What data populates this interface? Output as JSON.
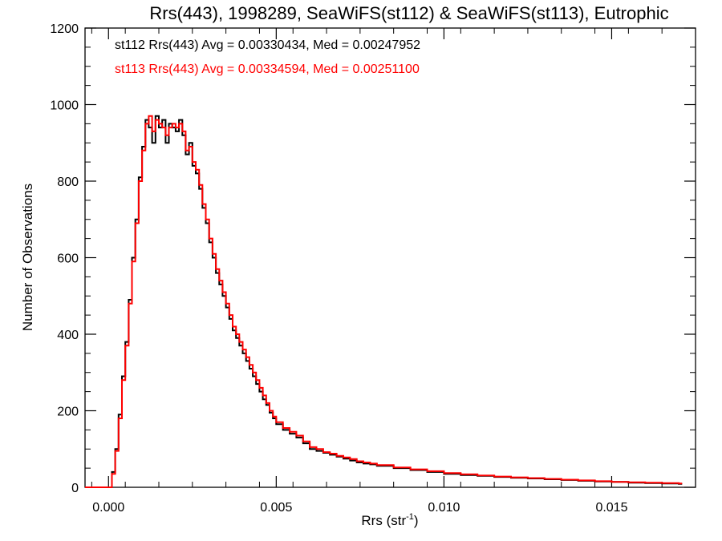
{
  "chart_data": {
    "type": "line",
    "title": "Rrs(443), 1998289, SeaWiFS(st112) & SeaWiFS(st113), Eutrophic",
    "xlabel": "Rrs (str",
    "xlabel_sup": "-1",
    "xlabel_end": ")",
    "ylabel": "Number of Observations",
    "xlim": [
      -0.0007,
      0.0175
    ],
    "ylim": [
      0,
      1200
    ],
    "x_ticks": [
      0.0,
      0.005,
      0.01,
      0.015
    ],
    "x_tick_labels": [
      "0.000",
      "0.005",
      "0.010",
      "0.015"
    ],
    "y_ticks": [
      0,
      200,
      400,
      600,
      800,
      1000,
      1200
    ],
    "y_tick_labels": [
      "0",
      "200",
      "400",
      "600",
      "800",
      "1000",
      "1200"
    ],
    "grid": false,
    "legend_position": "top-left",
    "bin_width": 0.0001,
    "series": [
      {
        "name": "st112",
        "color": "#000000",
        "legend_text": "st112 Rrs(443) Avg = 0.00330434, Med = 0.00247952",
        "x": [
          -0.0007,
          -0.0006,
          -0.0005,
          -0.0004,
          -0.0003,
          -0.0002,
          -0.0001,
          0.0,
          0.0001,
          0.0002,
          0.0003,
          0.0004,
          0.0005,
          0.0006,
          0.0007,
          0.0008,
          0.0009,
          0.001,
          0.0011,
          0.0012,
          0.0013,
          0.0014,
          0.0015,
          0.0016,
          0.0017,
          0.0018,
          0.0019,
          0.002,
          0.0021,
          0.0022,
          0.0023,
          0.0024,
          0.0025,
          0.0026,
          0.0027,
          0.0028,
          0.0029,
          0.003,
          0.0031,
          0.0032,
          0.0033,
          0.0034,
          0.0035,
          0.0036,
          0.0037,
          0.0038,
          0.0039,
          0.004,
          0.0041,
          0.0042,
          0.0043,
          0.0044,
          0.0045,
          0.0046,
          0.0047,
          0.0048,
          0.0049,
          0.005,
          0.0052,
          0.0054,
          0.0056,
          0.0058,
          0.006,
          0.0062,
          0.0064,
          0.0066,
          0.0068,
          0.007,
          0.0072,
          0.0074,
          0.0076,
          0.0078,
          0.008,
          0.0085,
          0.009,
          0.0095,
          0.01,
          0.0105,
          0.011,
          0.0115,
          0.012,
          0.0125,
          0.013,
          0.0135,
          0.014,
          0.0145,
          0.015,
          0.0155,
          0.016,
          0.0165,
          0.017
        ],
        "values": [
          0,
          0,
          0,
          0,
          0,
          0,
          0,
          0,
          40,
          100,
          190,
          290,
          380,
          490,
          600,
          700,
          810,
          890,
          960,
          940,
          900,
          970,
          940,
          960,
          900,
          950,
          940,
          930,
          960,
          920,
          870,
          900,
          840,
          820,
          780,
          730,
          690,
          640,
          600,
          560,
          530,
          500,
          470,
          440,
          410,
          390,
          370,
          350,
          330,
          310,
          290,
          270,
          250,
          230,
          215,
          195,
          180,
          165,
          150,
          140,
          130,
          115,
          100,
          95,
          90,
          85,
          80,
          75,
          70,
          65,
          62,
          60,
          56,
          50,
          45,
          40,
          35,
          32,
          30,
          27,
          25,
          23,
          21,
          19,
          17,
          15,
          14,
          12,
          11,
          10,
          9
        ]
      },
      {
        "name": "st113",
        "color": "#ff0000",
        "legend_text": "st113 Rrs(443) Avg = 0.00334594, Med = 0.00251100",
        "x": [
          -0.0007,
          -0.0006,
          -0.0005,
          -0.0004,
          -0.0003,
          -0.0002,
          -0.0001,
          0.0,
          0.0001,
          0.0002,
          0.0003,
          0.0004,
          0.0005,
          0.0006,
          0.0007,
          0.0008,
          0.0009,
          0.001,
          0.0011,
          0.0012,
          0.0013,
          0.0014,
          0.0015,
          0.0016,
          0.0017,
          0.0018,
          0.0019,
          0.002,
          0.0021,
          0.0022,
          0.0023,
          0.0024,
          0.0025,
          0.0026,
          0.0027,
          0.0028,
          0.0029,
          0.003,
          0.0031,
          0.0032,
          0.0033,
          0.0034,
          0.0035,
          0.0036,
          0.0037,
          0.0038,
          0.0039,
          0.004,
          0.0041,
          0.0042,
          0.0043,
          0.0044,
          0.0045,
          0.0046,
          0.0047,
          0.0048,
          0.0049,
          0.005,
          0.0052,
          0.0054,
          0.0056,
          0.0058,
          0.006,
          0.0062,
          0.0064,
          0.0066,
          0.0068,
          0.007,
          0.0072,
          0.0074,
          0.0076,
          0.0078,
          0.008,
          0.0085,
          0.009,
          0.0095,
          0.01,
          0.0105,
          0.011,
          0.0115,
          0.012,
          0.0125,
          0.013,
          0.0135,
          0.014,
          0.0145,
          0.015,
          0.0155,
          0.016,
          0.0165,
          0.017
        ],
        "values": [
          0,
          0,
          0,
          0,
          0,
          0,
          0,
          0,
          35,
          95,
          180,
          280,
          370,
          480,
          590,
          690,
          800,
          880,
          950,
          970,
          930,
          960,
          950,
          940,
          920,
          940,
          950,
          940,
          950,
          930,
          880,
          890,
          850,
          830,
          790,
          740,
          700,
          650,
          610,
          570,
          540,
          510,
          480,
          450,
          420,
          400,
          380,
          360,
          340,
          320,
          300,
          280,
          260,
          240,
          220,
          200,
          185,
          170,
          155,
          145,
          135,
          120,
          105,
          100,
          92,
          88,
          82,
          78,
          74,
          68,
          65,
          62,
          58,
          52,
          47,
          42,
          37,
          34,
          31,
          28,
          26,
          24,
          22,
          20,
          18,
          16,
          14,
          13,
          12,
          11,
          10
        ]
      }
    ]
  }
}
